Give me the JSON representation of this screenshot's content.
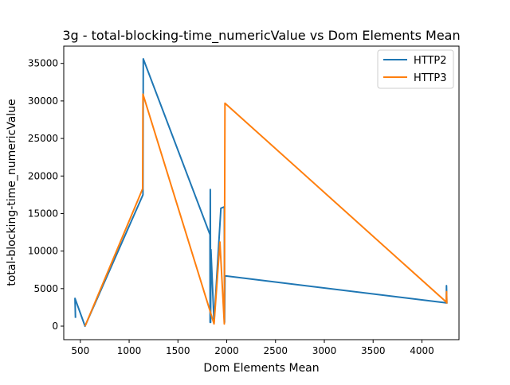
{
  "chart_data": {
    "type": "line",
    "title": "3g - total-blocking-time_numericValue vs Dom Elements Mean",
    "xlabel": "Dom Elements Mean",
    "ylabel": "total-blocking-time_numericValue",
    "xlim": [
      330,
      4380
    ],
    "ylim": [
      -1800,
      37300
    ],
    "xticks": [
      500,
      1000,
      1500,
      2000,
      2500,
      3000,
      3500,
      4000
    ],
    "yticks": [
      0,
      5000,
      10000,
      15000,
      20000,
      25000,
      30000,
      35000
    ],
    "grid": false,
    "legend_position": "top-right",
    "series": [
      {
        "name": "HTTP2",
        "color": "#1f77b4",
        "points": [
          [
            450,
            1100
          ],
          [
            445,
            3700
          ],
          [
            548,
            0
          ],
          [
            1142,
            17500
          ],
          [
            1145,
            35600
          ],
          [
            1828,
            12200
          ],
          [
            1830,
            500
          ],
          [
            1832,
            18200
          ],
          [
            1835,
            500
          ],
          [
            1838,
            10200
          ],
          [
            1870,
            500
          ],
          [
            1940,
            15700
          ],
          [
            1975,
            15900
          ],
          [
            1978,
            500
          ],
          [
            1982,
            6700
          ],
          [
            4250,
            3100
          ],
          [
            4252,
            5400
          ],
          [
            4255,
            3000
          ]
        ]
      },
      {
        "name": "HTTP3",
        "color": "#ff7f0e",
        "points": [
          [
            548,
            0
          ],
          [
            1138,
            18300
          ],
          [
            1142,
            30900
          ],
          [
            1870,
            300
          ],
          [
            1930,
            11200
          ],
          [
            1975,
            300
          ],
          [
            1982,
            29700
          ],
          [
            4250,
            3200
          ],
          [
            4253,
            4600
          ],
          [
            4255,
            3000
          ]
        ]
      }
    ]
  }
}
